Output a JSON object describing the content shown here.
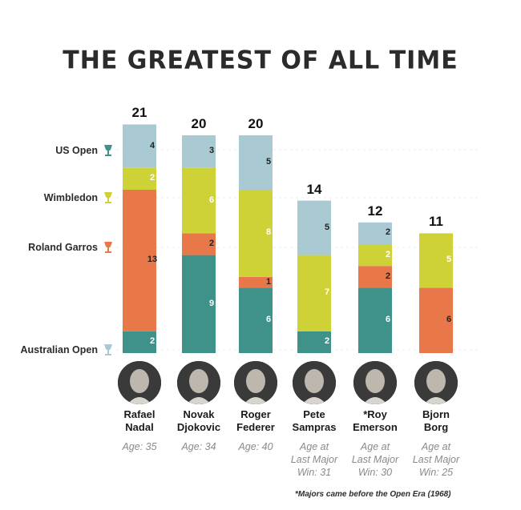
{
  "chart_data": {
    "type": "bar",
    "title": "THE GREATEST OF ALL TIME",
    "stacked": true,
    "categories": [
      "Rafael Nadal",
      "Novak Djokovic",
      "Roger Federer",
      "Pete Sampras",
      "*Roy Emerson",
      "Bjorn Borg"
    ],
    "series": [
      {
        "name": "Australian Open",
        "values": [
          2,
          9,
          6,
          2,
          6,
          0
        ],
        "color": "#3f9289"
      },
      {
        "name": "Roland Garros",
        "values": [
          13,
          2,
          1,
          0,
          2,
          6
        ],
        "color": "#e8774a"
      },
      {
        "name": "Wimbledon",
        "values": [
          2,
          6,
          8,
          7,
          2,
          5
        ],
        "color": "#cfd237"
      },
      {
        "name": "US Open",
        "values": [
          4,
          3,
          5,
          5,
          2,
          0
        ],
        "color": "#a9cad3"
      }
    ],
    "totals": [
      21,
      20,
      20,
      14,
      12,
      11
    ],
    "ylim": [
      0,
      21
    ]
  },
  "players": [
    {
      "first": "Rafael",
      "last": "Nadal",
      "age_lines": [
        "Age: 35"
      ]
    },
    {
      "first": "Novak",
      "last": "Djokovic",
      "age_lines": [
        "Age: 34"
      ]
    },
    {
      "first": "Roger",
      "last": "Federer",
      "age_lines": [
        "Age: 40"
      ]
    },
    {
      "first": "Pete",
      "last": "Sampras",
      "age_lines": [
        "Age at",
        "Last Major",
        "Win: 31"
      ]
    },
    {
      "first": "*Roy",
      "last": "Emerson",
      "age_lines": [
        "Age at",
        "Last Major",
        "Win: 30"
      ]
    },
    {
      "first": "Bjorn",
      "last": "Borg",
      "age_lines": [
        "Age at",
        "Last Major",
        "Win: 25"
      ]
    }
  ],
  "side_labels": [
    "US Open",
    "Wimbledon",
    "Roland Garros",
    "Australian Open"
  ],
  "icons": [
    "us-open-trophy-icon",
    "wimbledon-trophy-icon",
    "roland-garros-trophy-icon",
    "australian-open-trophy-icon"
  ],
  "footnote": "*Majors came before the Open Era (1968)"
}
